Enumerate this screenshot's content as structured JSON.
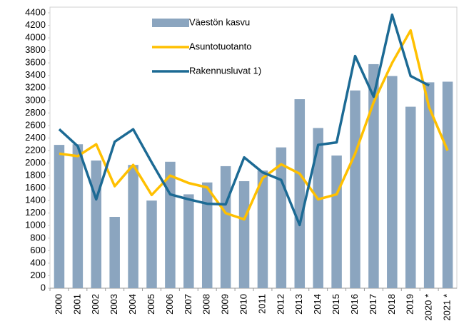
{
  "chart_data": {
    "type": "bar_line",
    "categories": [
      "2000",
      "2001",
      "2002",
      "2003",
      "2004",
      "2005",
      "2006",
      "2007",
      "2008",
      "2009",
      "2010",
      "2011",
      "2012",
      "2013",
      "2014",
      "2015",
      "2016",
      "2017",
      "2018",
      "2019",
      "2020 *",
      "2021 *"
    ],
    "series": [
      {
        "name": "Väestön kasvu",
        "type": "bar",
        "color": "#8ba5bf",
        "values": [
          2290,
          2300,
          2040,
          1140,
          1970,
          1400,
          2020,
          1500,
          1690,
          1950,
          1710,
          1880,
          2250,
          3020,
          2560,
          2120,
          3160,
          3580,
          3390,
          2900,
          3290,
          3300
        ]
      },
      {
        "name": "Asuntotuotanto",
        "type": "line",
        "color": "#ffc000",
        "values": [
          2150,
          2110,
          2300,
          1630,
          1970,
          1490,
          1800,
          1680,
          1610,
          1200,
          1100,
          1760,
          1980,
          1830,
          1420,
          1500,
          2150,
          2970,
          3600,
          4120,
          2890,
          2200
        ]
      },
      {
        "name": "Rakennusluvat 1)",
        "type": "line",
        "color": "#1c6a94",
        "values": [
          2540,
          2270,
          1420,
          2340,
          2540,
          2010,
          1500,
          1420,
          1350,
          1340,
          2090,
          1850,
          1730,
          1010,
          2290,
          2330,
          3710,
          3060,
          4370,
          3390,
          3240,
          null
        ]
      }
    ],
    "ylim": [
      0,
      4400
    ],
    "yticks": [
      0,
      200,
      400,
      600,
      800,
      1000,
      1200,
      1400,
      1600,
      1800,
      2000,
      2200,
      2400,
      2600,
      2800,
      3000,
      3200,
      3400,
      3600,
      3800,
      4000,
      4200,
      4400
    ],
    "grid": false,
    "legend": "upper left"
  }
}
